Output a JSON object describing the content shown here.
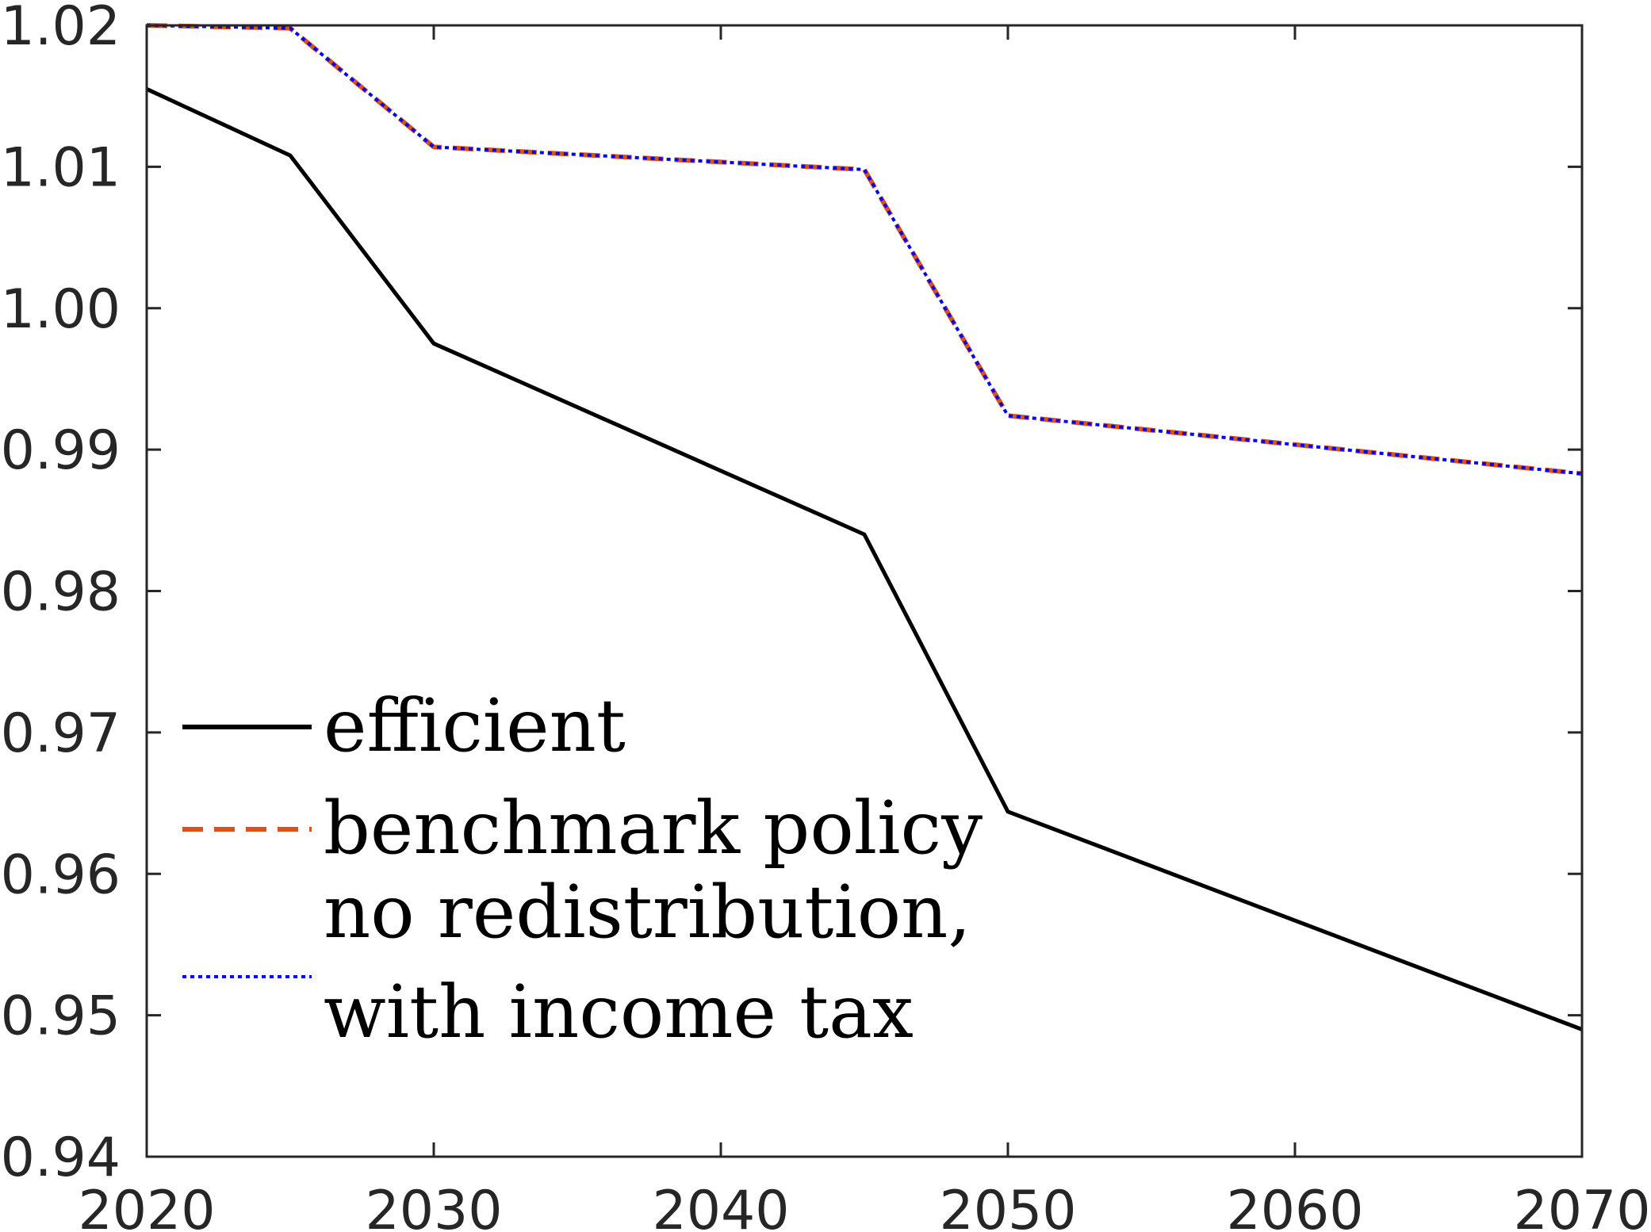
{
  "chart_data": {
    "type": "line",
    "title": "",
    "xlabel": "",
    "ylabel": "",
    "xlim": [
      2020,
      2070
    ],
    "ylim": [
      0.94,
      1.02
    ],
    "x_ticks": [
      "2020",
      "2030",
      "2040",
      "2050",
      "2060",
      "2070"
    ],
    "x_tick_values": [
      2020,
      2030,
      2040,
      2050,
      2060,
      2070
    ],
    "y_ticks": [
      "0.94",
      "0.95",
      "0.96",
      "0.97",
      "0.98",
      "0.99",
      "1.00",
      "1.01",
      "1.02"
    ],
    "y_tick_values": [
      0.94,
      0.95,
      0.96,
      0.97,
      0.98,
      0.99,
      1.0,
      1.01,
      1.02
    ],
    "grid": false,
    "legend_position": "bottom-left",
    "x": [
      2020,
      2025,
      2030,
      2045,
      2050,
      2070
    ],
    "series": [
      {
        "name": "efficient",
        "style": "solid",
        "color": "#000000",
        "values": [
          1.0155,
          1.0108,
          0.9975,
          0.984,
          0.9644,
          0.949
        ]
      },
      {
        "name": "benchmark policy",
        "style": "dashed",
        "color": "#D95319",
        "values": [
          1.02,
          1.0198,
          1.0114,
          1.0098,
          0.9924,
          0.9883
        ]
      },
      {
        "name_lines": [
          "no redistribution,",
          "with income tax"
        ],
        "style": "dotted",
        "color": "#0000FF",
        "values": [
          1.02,
          1.0198,
          1.0114,
          1.0098,
          0.9924,
          0.9883
        ]
      }
    ]
  }
}
